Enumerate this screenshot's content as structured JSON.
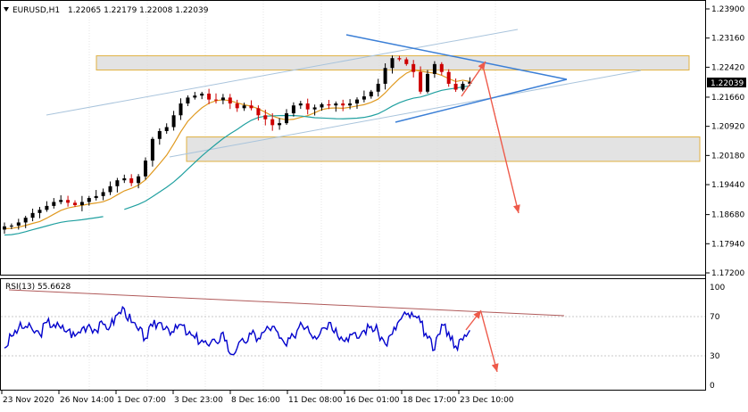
{
  "header": {
    "symbol": "EURUSD,H1",
    "ohlc": "1.22065 1.22179 1.22008 1.22039",
    "menu_icon": "triangle-down-icon"
  },
  "price_axis": {
    "ticks": [
      "1.23900",
      "1.23160",
      "1.22420",
      "1.21660",
      "1.20920",
      "1.20180",
      "1.19440",
      "1.18680",
      "1.17940",
      "1.17200"
    ],
    "current_price": "1.22039",
    "range": [
      1.172,
      1.239
    ]
  },
  "rsi": {
    "label": "RSI(13) 55.6628",
    "ticks": [
      "100",
      "70",
      "30",
      "0"
    ],
    "range": [
      0,
      100
    ],
    "levels": [
      70,
      30
    ]
  },
  "time_axis": {
    "labels": [
      "23 Nov 2020",
      "26 Nov 14:00",
      "1 Dec 07:00",
      "3 Dec 23:00",
      "8 Dec 16:00",
      "11 Dec 08:00",
      "16 Dec 01:00",
      "18 Dec 17:00",
      "23 Dec 10:00"
    ]
  },
  "colors": {
    "up_candle": "#000000",
    "down_candle": "#cc0000",
    "ma_fast": "#e09a20",
    "ma_slow": "#20a0a0",
    "triangle": "#3b7fd6",
    "channel": "#a9c4dc",
    "zone_fill": "#d9d9d9",
    "zone_border": "#e0b040",
    "arrows": "#ee5a4a",
    "rsi_line": "#0000cc",
    "rsi_trend": "#b05a5a",
    "current_price_bg": "#000000"
  },
  "chart_data": [
    {
      "type": "candlestick",
      "title": "EURUSD,H1",
      "ylim": [
        1.172,
        1.239
      ],
      "series": [
        {
          "values": [
            1.1838,
            1.184,
            1.1848,
            1.186,
            1.1872,
            1.188,
            1.189,
            1.19,
            1.1905,
            1.1898,
            1.1892,
            1.19,
            1.191,
            1.1915,
            1.1925,
            1.194,
            1.1955,
            1.196,
            1.1948,
            1.1965,
            1.2005,
            1.206,
            1.208,
            1.209,
            1.212,
            1.215,
            1.2165,
            1.217,
            1.2175,
            1.216,
            1.2158,
            1.2165,
            1.215,
            1.2138,
            1.2145,
            1.2138,
            1.212,
            1.211,
            1.2095,
            1.21,
            1.2125,
            1.2145,
            1.215,
            1.2135,
            1.214,
            1.2148,
            1.2145,
            1.215,
            1.2145,
            1.215,
            1.216,
            1.2168,
            1.218,
            1.22,
            1.224,
            1.2265,
            1.2262,
            1.225,
            1.223,
            1.218,
            1.2225,
            1.225,
            1.223,
            1.22,
            1.2185,
            1.22,
            1.2205
          ]
        }
      ]
    },
    {
      "type": "line",
      "title": "RSI(13) 55.6628",
      "ylim": [
        0,
        100
      ],
      "series": [
        {
          "values": [
            38,
            50,
            58,
            60,
            56,
            52,
            64,
            62,
            58,
            56,
            50,
            58,
            62,
            56,
            62,
            60,
            72,
            78,
            64,
            56,
            48,
            60,
            64,
            60,
            54,
            62,
            52,
            48,
            46,
            40,
            44,
            54,
            32,
            38,
            44,
            52,
            48,
            56,
            60,
            48,
            40,
            50,
            64,
            60,
            50,
            58,
            64,
            58,
            46,
            52,
            48,
            56,
            60,
            54,
            42,
            52,
            66,
            72,
            70,
            64,
            48,
            36,
            62,
            54,
            40,
            46,
            56
          ]
        }
      ]
    }
  ]
}
